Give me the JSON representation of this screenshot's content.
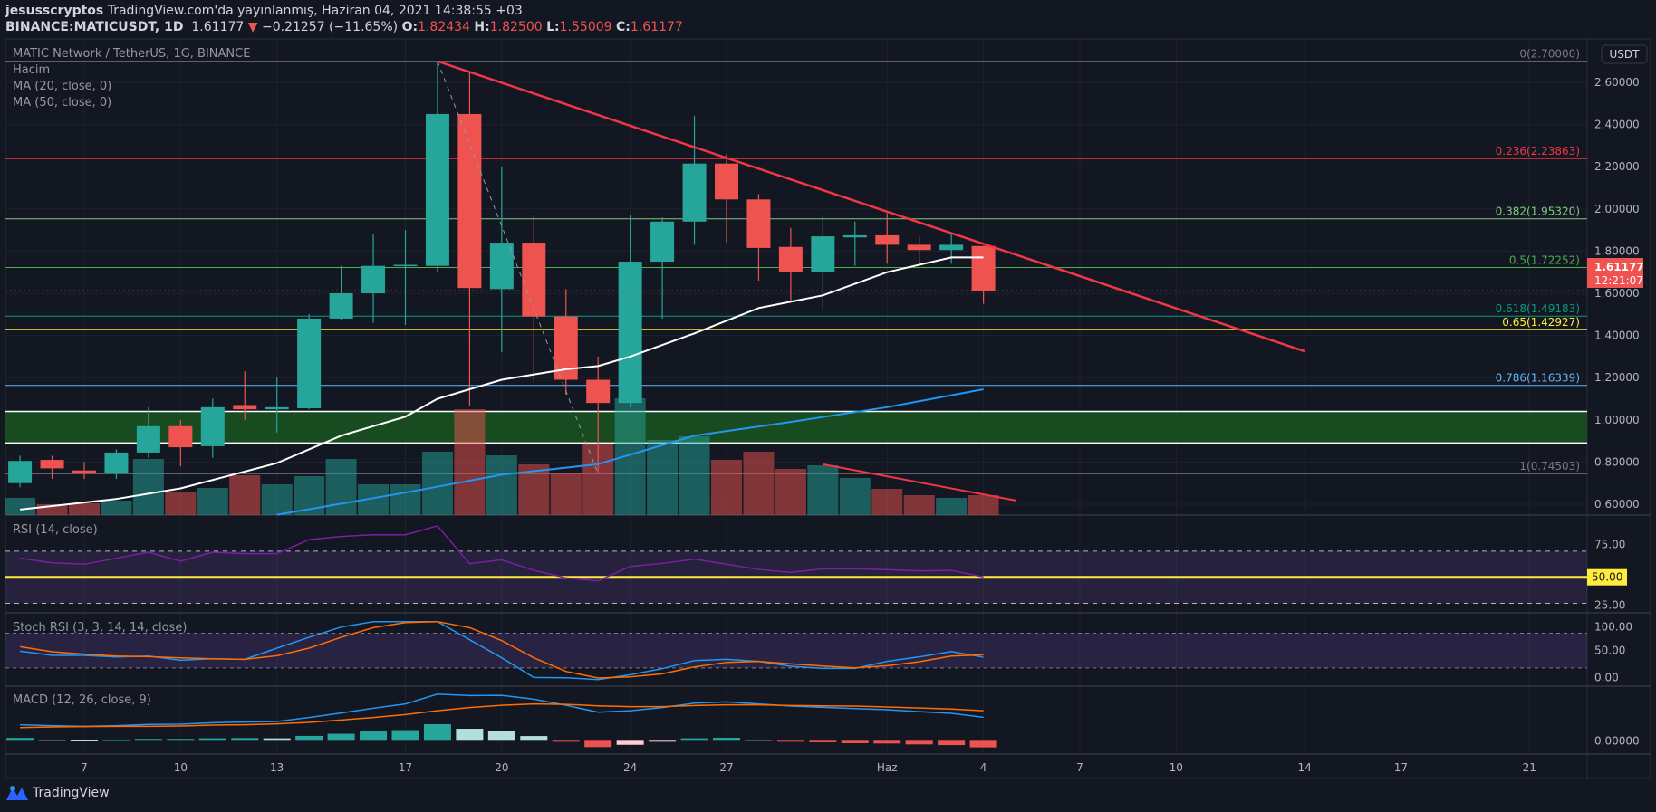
{
  "header": {
    "author": "jesusscryptos",
    "published": "TradingView.com'da yayınlanmış, Haziran 04, 2021 14:38:55 +03",
    "symbol": "BINANCE:MATICUSDT, 1D",
    "last": "1.61177",
    "change": "−0.21257 (−11.65%)",
    "o_label": "O:",
    "o": "1.82434",
    "h_label": "H:",
    "h": "1.82500",
    "l_label": "L:",
    "l": "1.55009",
    "c_label": "C:",
    "c": "1.61177"
  },
  "legend": {
    "title": "MATIC Network / TetherUS, 1G, BINANCE",
    "volume": "Hacim",
    "ma20": "MA (20, close, 0)",
    "ma50": "MA (50, close, 0)",
    "rsi": "RSI (14, close)",
    "stoch": "Stoch RSI (3, 3, 14, 14, close)",
    "macd": "MACD (12, 26, close, 9)"
  },
  "price_axis": {
    "currency": "USDT",
    "ticks": [
      "2.60000",
      "2.40000",
      "2.20000",
      "2.00000",
      "1.80000",
      "1.60000",
      "1.40000",
      "1.20000",
      "1.00000",
      "0.80000",
      "0.60000"
    ],
    "last_price": "1.61177",
    "countdown": "12:21:07"
  },
  "rsi_axis": {
    "ticks": [
      "75.00",
      "25.00"
    ],
    "highlight": "50.00"
  },
  "stoch_axis": {
    "ticks": [
      "100.00",
      "50.00",
      "0.00"
    ]
  },
  "macd_axis": {
    "ticks": [
      "0.00000"
    ]
  },
  "time_axis": [
    {
      "label": "7",
      "date": "2021-05-07"
    },
    {
      "label": "10",
      "date": "2021-05-10"
    },
    {
      "label": "13",
      "date": "2021-05-13"
    },
    {
      "label": "17",
      "date": "2021-05-17"
    },
    {
      "label": "20",
      "date": "2021-05-20"
    },
    {
      "label": "24",
      "date": "2021-05-24"
    },
    {
      "label": "27",
      "date": "2021-05-27"
    },
    {
      "label": "Haz",
      "date": "2021-06-01"
    },
    {
      "label": "4",
      "date": "2021-06-04"
    },
    {
      "label": "7",
      "date": "2021-06-07"
    },
    {
      "label": "10",
      "date": "2021-06-10"
    },
    {
      "label": "14",
      "date": "2021-06-14"
    },
    {
      "label": "17",
      "date": "2021-06-17"
    },
    {
      "label": "21",
      "date": "2021-06-21"
    }
  ],
  "fib": [
    {
      "label": "0(2.70000)",
      "price": 2.7,
      "color": "#787b86"
    },
    {
      "label": "0.236(2.23863)",
      "price": 2.23863,
      "color": "#f23645"
    },
    {
      "label": "0.382(1.95320)",
      "price": 1.9532,
      "color": "#81c784"
    },
    {
      "label": "0.5(1.72252)",
      "price": 1.72252,
      "color": "#4caf50"
    },
    {
      "label": "0.618(1.49183)",
      "price": 1.49183,
      "color": "#089981"
    },
    {
      "label": "0.65(1.42927)",
      "price": 1.42927,
      "color": "#ffeb3b"
    },
    {
      "label": "0.786(1.16339)",
      "price": 1.16339,
      "color": "#64b5f6"
    },
    {
      "label": "1(0.74503)",
      "price": 0.74503,
      "color": "#787b86"
    }
  ],
  "zone": {
    "top": 1.04,
    "bottom": 0.89,
    "color": "#1b5e20"
  },
  "footer": {
    "brand": "TradingView"
  },
  "colors": {
    "up": "#26a69a",
    "down": "#ef5350",
    "ma20": "#ffffff",
    "ma50": "#2196f3",
    "rsi": "#7b1fa2",
    "stoch_k": "#2196f3",
    "stoch_d": "#ff6d00",
    "macd": "#2196f3",
    "signal": "#ff6d00",
    "trend": "#f23645"
  },
  "chart_data": {
    "type": "candlestick",
    "ylim": [
      0.55,
      2.75
    ],
    "candles": [
      [
        "2021-05-05",
        0.7,
        0.83,
        0.68,
        0.805
      ],
      [
        "2021-05-06",
        0.81,
        0.83,
        0.72,
        0.77
      ],
      [
        "2021-05-07",
        0.76,
        0.8,
        0.72,
        0.745
      ],
      [
        "2021-05-08",
        0.745,
        0.86,
        0.72,
        0.845
      ],
      [
        "2021-05-09",
        0.845,
        1.06,
        0.82,
        0.97
      ],
      [
        "2021-05-10",
        0.97,
        1.0,
        0.78,
        0.87
      ],
      [
        "2021-05-11",
        0.875,
        1.1,
        0.82,
        1.06
      ],
      [
        "2021-05-12",
        1.07,
        1.23,
        1.0,
        1.05
      ],
      [
        "2021-05-13",
        1.05,
        1.2,
        0.94,
        1.06
      ],
      [
        "2021-05-14",
        1.055,
        1.5,
        1.05,
        1.48
      ],
      [
        "2021-05-15",
        1.48,
        1.73,
        1.47,
        1.6
      ],
      [
        "2021-05-16",
        1.6,
        1.88,
        1.46,
        1.73
      ],
      [
        "2021-05-17",
        1.73,
        1.9,
        1.45,
        1.735
      ],
      [
        "2021-05-18",
        1.73,
        2.7,
        1.7,
        2.45
      ],
      [
        "2021-05-19",
        2.45,
        2.65,
        1.065,
        1.625
      ],
      [
        "2021-05-20",
        1.62,
        2.2,
        1.32,
        1.84
      ],
      [
        "2021-05-21",
        1.84,
        1.97,
        1.18,
        1.49
      ],
      [
        "2021-05-22",
        1.49,
        1.62,
        1.12,
        1.19
      ],
      [
        "2021-05-23",
        1.19,
        1.3,
        0.75,
        1.08
      ],
      [
        "2021-05-24",
        1.08,
        1.97,
        1.06,
        1.75
      ],
      [
        "2021-05-25",
        1.75,
        1.96,
        1.48,
        1.94
      ],
      [
        "2021-05-26",
        1.94,
        2.44,
        1.83,
        2.215
      ],
      [
        "2021-05-27",
        2.215,
        2.26,
        1.84,
        2.045
      ],
      [
        "2021-05-28",
        2.045,
        2.07,
        1.66,
        1.815
      ],
      [
        "2021-05-29",
        1.82,
        1.91,
        1.56,
        1.7
      ],
      [
        "2021-05-30",
        1.7,
        1.97,
        1.53,
        1.87
      ],
      [
        "2021-05-31",
        1.865,
        1.94,
        1.73,
        1.875
      ],
      [
        "2021-06-01",
        1.875,
        1.98,
        1.74,
        1.83
      ],
      [
        "2021-06-02",
        1.83,
        1.87,
        1.74,
        1.805
      ],
      [
        "2021-06-03",
        1.805,
        1.88,
        1.74,
        1.83
      ],
      [
        "2021-06-04",
        1.82434,
        1.825,
        1.55009,
        1.61177
      ]
    ],
    "volume_relative": [
      19,
      12,
      13,
      16,
      62,
      26,
      30,
      44,
      34,
      43,
      62,
      34,
      34,
      70,
      117,
      66,
      56,
      47,
      79,
      129,
      83,
      87,
      61,
      70,
      51,
      55,
      41,
      29,
      22,
      19,
      22
    ],
    "ma20": [
      [
        "2021-05-05",
        0.575
      ],
      [
        "2021-05-08",
        0.625
      ],
      [
        "2021-05-10",
        0.675
      ],
      [
        "2021-05-13",
        0.795
      ],
      [
        "2021-05-15",
        0.925
      ],
      [
        "2021-05-17",
        1.015
      ],
      [
        "2021-05-18",
        1.1
      ],
      [
        "2021-05-20",
        1.19
      ],
      [
        "2021-05-22",
        1.24
      ],
      [
        "2021-05-23",
        1.255
      ],
      [
        "2021-05-24",
        1.3
      ],
      [
        "2021-05-26",
        1.41
      ],
      [
        "2021-05-28",
        1.53
      ],
      [
        "2021-05-30",
        1.59
      ],
      [
        "2021-06-01",
        1.7
      ],
      [
        "2021-06-03",
        1.77
      ],
      [
        "2021-06-04",
        1.77
      ]
    ],
    "ma50": [
      [
        "2021-05-13",
        0.55
      ],
      [
        "2021-05-17",
        0.655
      ],
      [
        "2021-05-20",
        0.74
      ],
      [
        "2021-05-23",
        0.79
      ],
      [
        "2021-05-26",
        0.925
      ],
      [
        "2021-05-29",
        0.99
      ],
      [
        "2021-06-01",
        1.06
      ],
      [
        "2021-06-04",
        1.145
      ]
    ],
    "trendline": [
      [
        "2021-05-18",
        2.7
      ],
      [
        "2021-06-14",
        1.325
      ]
    ],
    "dashed_line": [
      [
        "2021-05-18",
        2.7
      ],
      [
        "2021-05-23",
        0.745
      ]
    ],
    "rsi": [
      64.6,
      61.1,
      60.0,
      64.6,
      69.2,
      62.3,
      69.2,
      68.1,
      68.1,
      78.9,
      81.3,
      82.6,
      82.6,
      89.4,
      60.4,
      63.4,
      55.3,
      49.5,
      47.2,
      58.3,
      60.6,
      63.9,
      60.0,
      56.0,
      53.7,
      56.5,
      56.5,
      55.8,
      54.9,
      55.3,
      50.2
    ],
    "rsi_bands": [
      70,
      50,
      30
    ],
    "stoch_k": [
      49,
      41.7,
      41.7,
      39,
      40.6,
      33.3,
      35.9,
      34.9,
      54.2,
      72.9,
      90.6,
      100,
      100,
      100,
      68.8,
      37.5,
      3.6,
      3.1,
      0,
      8.3,
      18.8,
      32.8,
      34.9,
      31.3,
      22.9,
      19.3,
      19.3,
      31.3,
      39.1,
      48.4,
      38.5
    ],
    "stoch_d": [
      56.8,
      47.9,
      43.8,
      40.6,
      39.6,
      37.5,
      35.9,
      34.9,
      41.1,
      54.2,
      72.9,
      89.6,
      98.4,
      100,
      89.6,
      67.2,
      37.5,
      14.1,
      2.6,
      4.7,
      9.9,
      21.9,
      29.7,
      31.3,
      27.1,
      23.4,
      20.3,
      24,
      30.7,
      40.6,
      42.7
    ],
    "stoch_bands": [
      80,
      20
    ],
    "macd": [
      0.119,
      0.112,
      0.107,
      0.112,
      0.121,
      0.123,
      0.134,
      0.139,
      0.143,
      0.172,
      0.206,
      0.241,
      0.273,
      0.346,
      0.335,
      0.337,
      0.308,
      0.263,
      0.212,
      0.223,
      0.246,
      0.279,
      0.288,
      0.273,
      0.257,
      0.248,
      0.239,
      0.23,
      0.216,
      0.203,
      0.174
    ],
    "signal": [
      0.098,
      0.103,
      0.105,
      0.107,
      0.107,
      0.109,
      0.116,
      0.119,
      0.125,
      0.136,
      0.154,
      0.172,
      0.194,
      0.223,
      0.246,
      0.263,
      0.273,
      0.27,
      0.259,
      0.253,
      0.253,
      0.261,
      0.266,
      0.266,
      0.261,
      0.259,
      0.257,
      0.25,
      0.243,
      0.235,
      0.223
    ]
  }
}
